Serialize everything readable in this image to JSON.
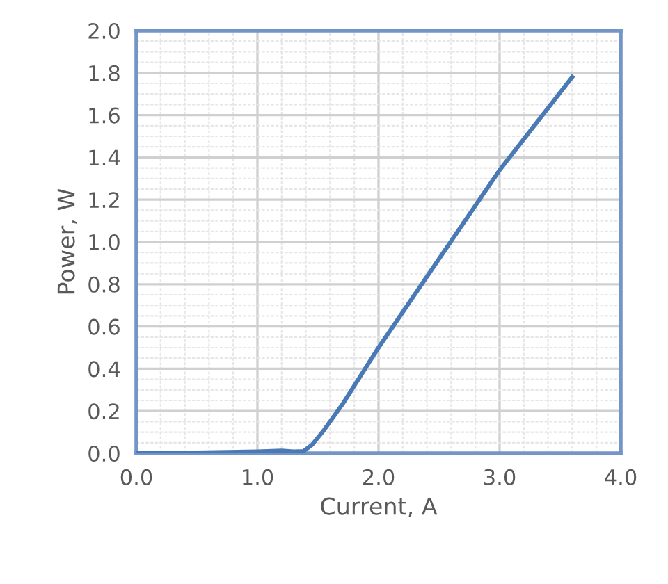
{
  "chart_data": {
    "type": "line",
    "xlabel": "Current, A",
    "ylabel": "Power, W",
    "x": [
      0,
      0.5,
      1.0,
      1.2,
      1.3,
      1.38,
      1.45,
      1.55,
      1.7,
      2.0,
      2.5,
      3.0,
      3.6
    ],
    "series": [
      {
        "color": "#4a7ab5",
        "values": [
          0,
          0.003,
          0.008,
          0.012,
          0.008,
          0.01,
          0.04,
          0.11,
          0.23,
          0.5,
          0.92,
          1.34,
          1.78
        ]
      }
    ],
    "xlim": [
      0,
      4
    ],
    "xticks": [
      {
        "value": 0,
        "label": "0.0"
      },
      {
        "value": 1,
        "label": "1.0"
      },
      {
        "value": 2,
        "label": "2.0"
      },
      {
        "value": 3,
        "label": "3.0"
      },
      {
        "value": 4,
        "label": "4.0"
      }
    ],
    "ylim": [
      0,
      2
    ],
    "yticks": [
      {
        "value": 0,
        "label": "0.0"
      },
      {
        "value": 0.2,
        "label": "0.2"
      },
      {
        "value": 0.4,
        "label": "0.4"
      },
      {
        "value": 0.6,
        "label": "0.6"
      },
      {
        "value": 0.8,
        "label": "0.8"
      },
      {
        "value": 1.0,
        "label": "1.0"
      },
      {
        "value": 1.2,
        "label": "1.2"
      },
      {
        "value": 1.4,
        "label": "1.4"
      },
      {
        "value": 1.6,
        "label": "1.6"
      },
      {
        "value": 1.8,
        "label": "1.8"
      },
      {
        "value": 2.0,
        "label": "2.0"
      }
    ],
    "grid": true,
    "marker": "none",
    "line_style": "solid"
  }
}
